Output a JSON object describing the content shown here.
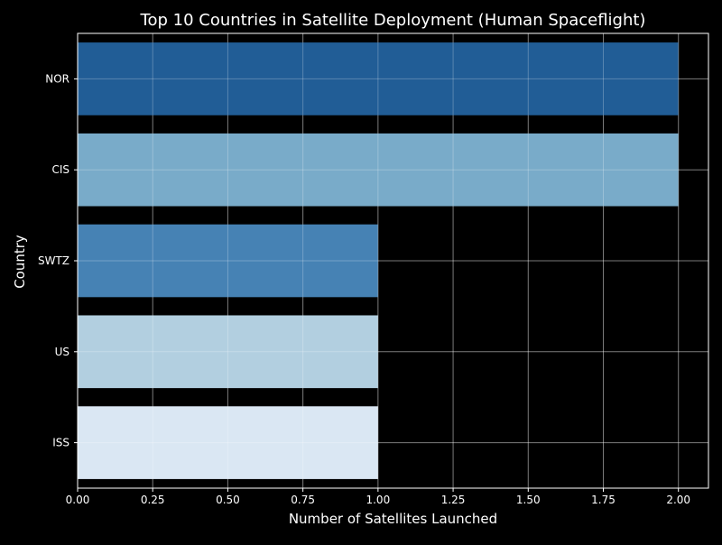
{
  "chart_data": {
    "type": "bar",
    "orientation": "horizontal",
    "title": "Top 10 Countries in Satellite Deployment (Human Spaceflight)",
    "xlabel": "Number of Satellites Launched",
    "ylabel": "Country",
    "categories": [
      "NOR",
      "CIS",
      "SWTZ",
      "US",
      "ISS"
    ],
    "values": [
      2,
      2,
      1,
      1,
      1
    ],
    "colors": [
      "#215d96",
      "#79abc9",
      "#4682b4",
      "#b2cfe0",
      "#dae7f3"
    ],
    "xlim": [
      0,
      2.1
    ],
    "xticks": [
      "0.00",
      "0.25",
      "0.50",
      "0.75",
      "1.00",
      "1.25",
      "1.50",
      "1.75",
      "2.00"
    ],
    "grid": true,
    "background": "#000000",
    "foreground": "#ffffff"
  }
}
